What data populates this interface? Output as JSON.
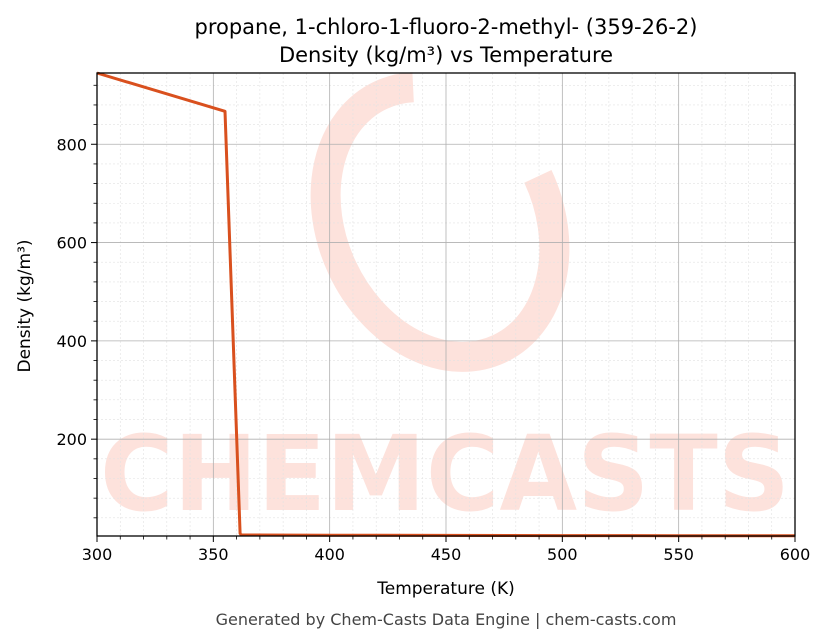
{
  "chart_data": {
    "type": "line",
    "title_line1": "propane, 1-chloro-1-fluoro-2-methyl- (359-26-2)",
    "title_line2": "Density (kg/m³) vs Temperature",
    "xlabel": "Temperature (K)",
    "ylabel": "Density (kg/m³)",
    "xlim": [
      300,
      600
    ],
    "ylim": [
      3,
      945
    ],
    "x_ticks": [
      300,
      350,
      400,
      450,
      500,
      550,
      600
    ],
    "y_ticks": [
      200,
      400,
      600,
      800
    ],
    "grid": true,
    "minor_grid": true,
    "series": [
      {
        "color": "#d9501e",
        "x": [
          300,
          355,
          361.5,
          362,
          400,
          450,
          500,
          550,
          600
        ],
        "y": [
          945,
          867,
          8,
          5,
          4.6,
          4.2,
          3.9,
          3.6,
          3.4
        ]
      }
    ]
  },
  "watermark": {
    "text": "CHEMCASTS",
    "color": "#fde2dc"
  },
  "footer": "Generated by Chem-Casts Data Engine | chem-casts.com"
}
